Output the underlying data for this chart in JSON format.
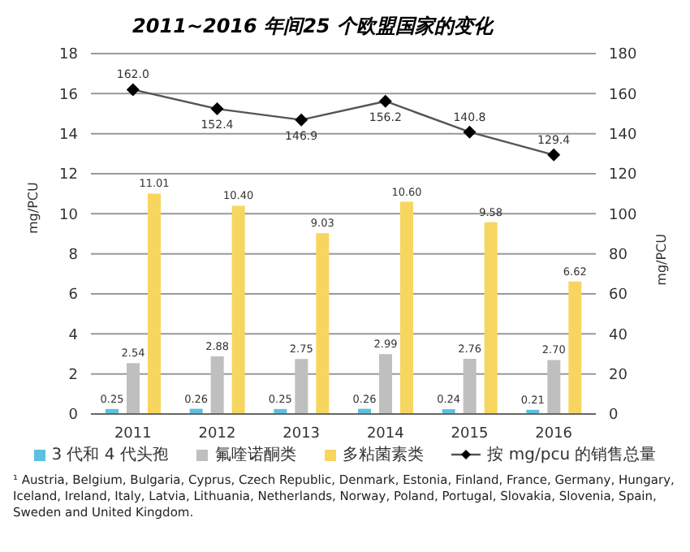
{
  "chart_data": {
    "type": "bar",
    "title": "2011~2016 年间25 个欧盟国家的变化",
    "categories": [
      "2011",
      "2012",
      "2013",
      "2014",
      "2015",
      "2016"
    ],
    "series": [
      {
        "name": "3 代和 4 代头孢",
        "color": "#5bc0de",
        "values": [
          0.25,
          0.26,
          0.25,
          0.26,
          0.24,
          0.21
        ],
        "value_labels": [
          "0.25",
          "0.26",
          "0.25",
          "0.26",
          "0.24",
          "0.21"
        ]
      },
      {
        "name": "氟喹诺酮类",
        "color": "#bfbfbf",
        "values": [
          2.54,
          2.88,
          2.75,
          2.99,
          2.76,
          2.7
        ],
        "value_labels": [
          "2.54",
          "2.88",
          "2.75",
          "2.99",
          "2.76",
          "2.70"
        ]
      },
      {
        "name": "多粘菌素类",
        "color": "#f7d660",
        "values": [
          11.01,
          10.4,
          9.03,
          10.6,
          9.58,
          6.62
        ],
        "value_labels": [
          "11.01",
          "10.40",
          "9.03",
          "10.60",
          "9.58",
          "6.62"
        ]
      },
      {
        "name": "按 mg/pcu 的销售总量",
        "type": "line",
        "axis": "y2",
        "color": "#555555",
        "marker": "diamond",
        "values": [
          162.0,
          152.4,
          146.9,
          156.2,
          140.8,
          129.4
        ],
        "value_labels": [
          "162.0",
          "152.4",
          "146.9",
          "156.2",
          "140.8",
          "129.4"
        ]
      }
    ],
    "ylabel": "mg/PCU",
    "y2label": "mg/PCU",
    "ylim": [
      0,
      18
    ],
    "yticks": [
      0,
      2,
      4,
      6,
      8,
      10,
      12,
      14,
      16,
      18
    ],
    "y2lim": [
      0,
      180
    ],
    "y2ticks": [
      0,
      20,
      40,
      60,
      80,
      100,
      120,
      140,
      160,
      180
    ],
    "grid": "y",
    "legend": "bottom",
    "annotations": [
      "¹ Austria, Belgium, Bulgaria, Cyprus, Czech Republic, Denmark, Estonia, Finland, France, Germany, Hungary, Iceland, Ireland, Italy, Latvia, Lithuania, Netherlands, Norway, Poland, Portugal, Slovakia, Slovenia, Spain, Sweden and United Kingdom."
    ]
  }
}
